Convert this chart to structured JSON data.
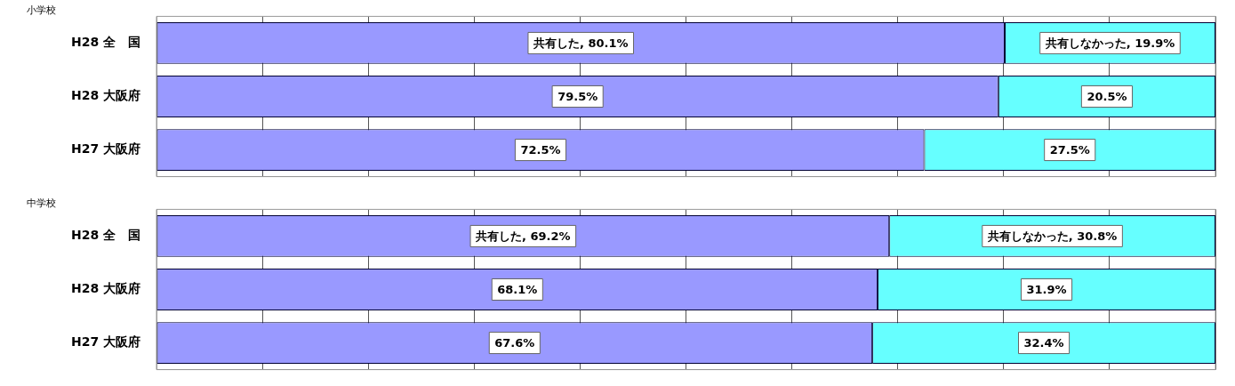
{
  "chart_data": [
    {
      "type": "bar",
      "title": "小学校",
      "orientation": "horizontal",
      "stacked": true,
      "categories": [
        "H28 全　国",
        "H28 大阪府",
        "H27 大阪府"
      ],
      "series": [
        {
          "color": "#9999ff",
          "values": [
            80.1,
            79.5,
            72.5
          ],
          "value_labels": [
            "共有した, 80.1%",
            "79.5%",
            "72.5%"
          ]
        },
        {
          "color": "#66ffff",
          "values": [
            19.9,
            20.5,
            27.5
          ],
          "value_labels": [
            "共有しなかった, 19.9%",
            "20.5%",
            "27.5%"
          ]
        }
      ],
      "xlim": [
        0,
        100
      ],
      "xticks": [
        {
          "value": 0,
          "label": null
        },
        {
          "value": 10,
          "label": null
        },
        {
          "value": 20,
          "label": null
        },
        {
          "value": 30,
          "label": null
        },
        {
          "value": 40,
          "label": null
        },
        {
          "value": 50,
          "label": null
        },
        {
          "value": 60,
          "label": null
        },
        {
          "value": 70,
          "label": null
        },
        {
          "value": 80,
          "label": null
        },
        {
          "value": 90,
          "label": null
        },
        {
          "value": 100,
          "label": null
        }
      ],
      "grid": "x",
      "tick_labels": "y",
      "legend": false
    },
    {
      "type": "bar",
      "title": "中学校",
      "orientation": "horizontal",
      "stacked": true,
      "categories": [
        "H28 全　国",
        "H28 大阪府",
        "H27 大阪府"
      ],
      "series": [
        {
          "color": "#9999ff",
          "values": [
            69.2,
            68.1,
            67.6
          ],
          "value_labels": [
            "共有した, 69.2%",
            "68.1%",
            "67.6%"
          ]
        },
        {
          "color": "#66ffff",
          "values": [
            30.8,
            31.9,
            32.4
          ],
          "value_labels": [
            "共有しなかった, 30.8%",
            "31.9%",
            "32.4%"
          ]
        }
      ],
      "xlim": [
        0,
        100
      ],
      "xticks": [
        {
          "value": 0,
          "label": null
        },
        {
          "value": 10,
          "label": null
        },
        {
          "value": 20,
          "label": null
        },
        {
          "value": 30,
          "label": null
        },
        {
          "value": 40,
          "label": null
        },
        {
          "value": 50,
          "label": null
        },
        {
          "value": 60,
          "label": null
        },
        {
          "value": 70,
          "label": null
        },
        {
          "value": 80,
          "label": null
        },
        {
          "value": 90,
          "label": null
        },
        {
          "value": 100,
          "label": null
        }
      ],
      "grid": "x",
      "tick_labels": "y",
      "legend": false
    }
  ]
}
